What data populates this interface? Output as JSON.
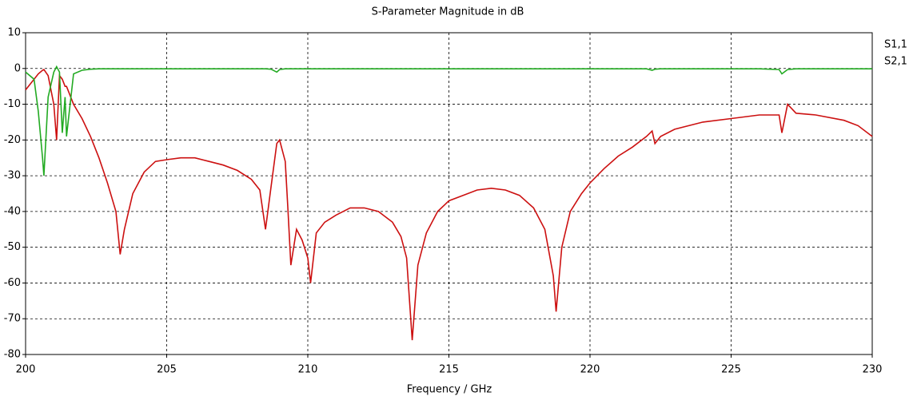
{
  "chart_data": {
    "type": "line",
    "title": "S-Parameter Magnitude in dB",
    "x_label": "Frequency / GHz",
    "x": [
      200,
      200.3,
      200.45,
      200.6,
      200.65,
      200.8,
      201.0,
      201.1,
      201.2,
      201.3,
      201.4,
      201.45,
      201.7,
      202.0,
      202.3,
      202.6,
      202.9,
      203.2,
      203.35,
      203.5,
      203.8,
      204.2,
      204.6,
      205.0,
      205.5,
      206.0,
      206.5,
      207.0,
      207.5,
      208.0,
      208.3,
      208.5,
      208.7,
      208.9,
      209.0,
      209.2,
      209.3,
      209.4,
      209.6,
      209.8,
      210.0,
      210.1,
      210.3,
      210.6,
      211.0,
      211.5,
      212.0,
      212.5,
      213.0,
      213.3,
      213.5,
      213.7,
      213.9,
      214.2,
      214.6,
      215.0,
      215.5,
      216.0,
      216.5,
      217.0,
      217.5,
      218.0,
      218.4,
      218.7,
      218.8,
      219.0,
      219.3,
      219.7,
      220.0,
      220.5,
      221.0,
      221.5,
      222.0,
      222.2,
      222.3,
      222.5,
      223.0,
      224.0,
      225.0,
      226.0,
      226.7,
      226.8,
      227.0,
      227.3,
      228.0,
      229.0,
      229.5,
      230.0
    ],
    "series": [
      {
        "name": "S1,1",
        "color": "#cc1010",
        "values": [
          -6,
          -3,
          -1.5,
          -0.5,
          -0.3,
          -2,
          -10,
          -20,
          -2,
          -3,
          -5,
          -5,
          -10,
          -14,
          -19,
          -25,
          -32,
          -40,
          -52,
          -45,
          -35,
          -29,
          -26,
          -25.5,
          -25,
          -25,
          -26,
          -27,
          -28.5,
          -31,
          -34,
          -45,
          -33,
          -21,
          -20,
          -26,
          -40,
          -55,
          -45,
          -48,
          -53,
          -60,
          -46,
          -43,
          -41,
          -39,
          -39,
          -40,
          -43,
          -47,
          -53,
          -76,
          -55,
          -46,
          -40,
          -37,
          -35.5,
          -34,
          -33.5,
          -34,
          -35.5,
          -39,
          -45,
          -58,
          -68,
          -50,
          -40,
          -35,
          -32,
          -28,
          -24.5,
          -22,
          -19,
          -17.5,
          -21,
          -19,
          -17,
          -15,
          -14,
          -13,
          -13,
          -18,
          -10,
          -12.5,
          -13,
          -14.5,
          -16,
          -19
        ]
      },
      {
        "name": "S2,1",
        "color": "#22aa22",
        "values": [
          -1,
          -3,
          -12,
          -25,
          -30,
          -8,
          -1,
          0.5,
          -1,
          -18,
          -8,
          -19,
          -1.5,
          -0.5,
          -0.2,
          -0.1,
          -0.1,
          -0.1,
          -0.1,
          -0.1,
          -0.1,
          -0.1,
          -0.1,
          -0.1,
          -0.1,
          -0.1,
          -0.1,
          -0.1,
          -0.1,
          -0.1,
          -0.1,
          -0.1,
          -0.2,
          -1,
          -0.3,
          -0.1,
          -0.1,
          -0.1,
          -0.1,
          -0.1,
          -0.1,
          -0.1,
          -0.1,
          -0.1,
          -0.1,
          -0.1,
          -0.1,
          -0.1,
          -0.1,
          -0.1,
          -0.1,
          -0.1,
          -0.1,
          -0.1,
          -0.1,
          -0.1,
          -0.1,
          -0.1,
          -0.1,
          -0.1,
          -0.1,
          -0.1,
          -0.1,
          -0.1,
          -0.1,
          -0.1,
          -0.1,
          -0.1,
          -0.1,
          -0.1,
          -0.1,
          -0.1,
          -0.1,
          -0.5,
          -0.2,
          -0.1,
          -0.1,
          -0.1,
          -0.1,
          -0.1,
          -0.3,
          -1.5,
          -0.3,
          -0.1,
          -0.1,
          -0.1,
          -0.1,
          -0.1
        ]
      }
    ],
    "xlim": [
      200,
      230
    ],
    "xticks": [
      200,
      205,
      210,
      215,
      220,
      225,
      230
    ],
    "ylim": [
      -80,
      10
    ],
    "yticks": [
      -80,
      -70,
      -60,
      -50,
      -40,
      -30,
      -20,
      -10,
      0,
      10
    ],
    "grid": true
  }
}
